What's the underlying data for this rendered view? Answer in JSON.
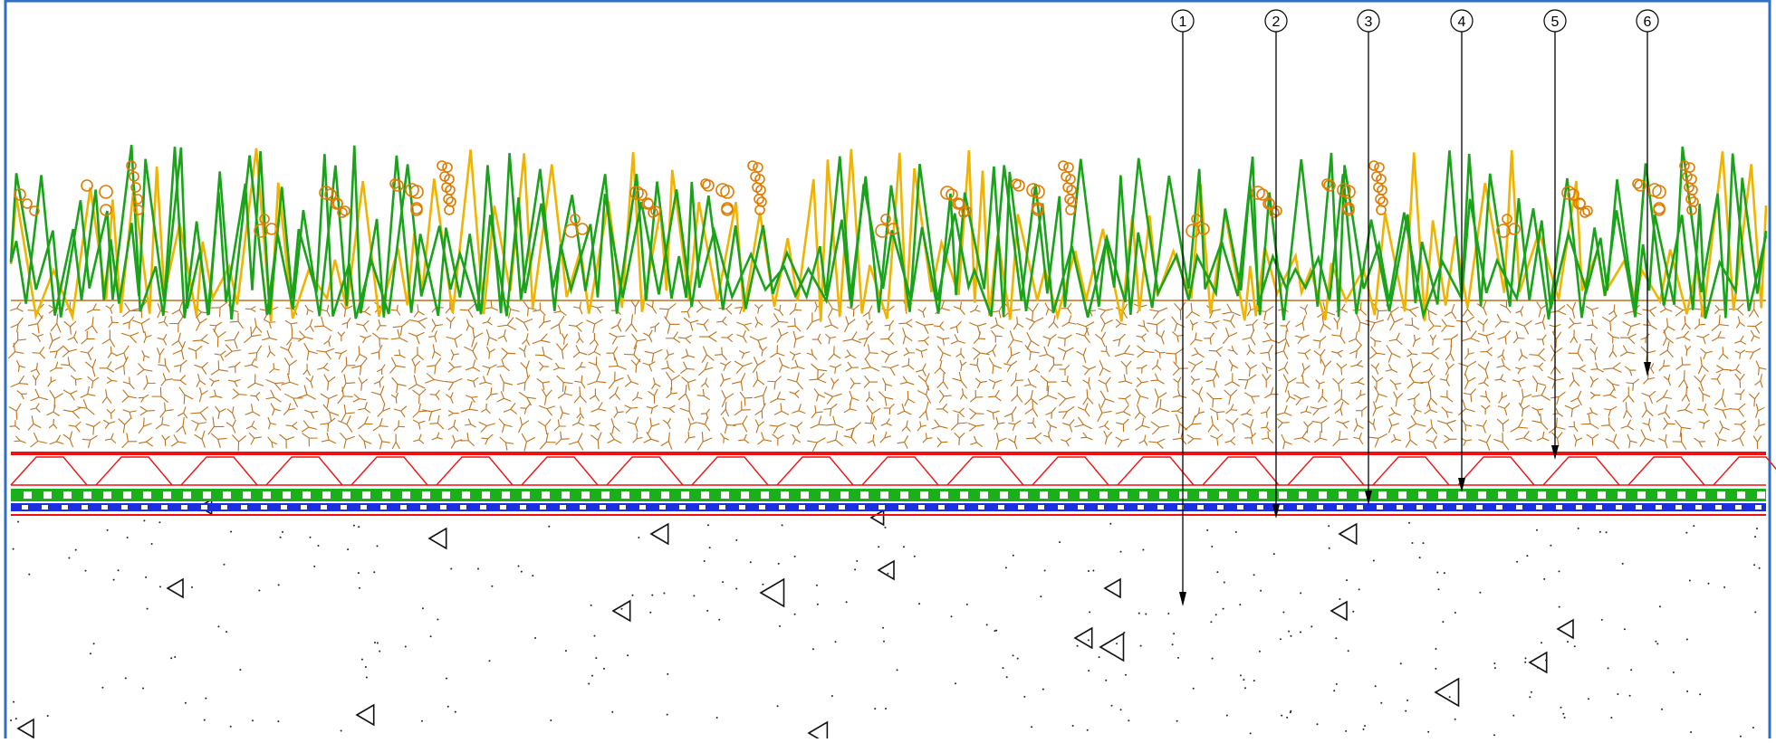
{
  "callouts": [
    {
      "number": "1",
      "layer": "subgrade"
    },
    {
      "number": "2",
      "layer": "bottom-membrane"
    },
    {
      "number": "3",
      "layer": "waterproofing-membrane"
    },
    {
      "number": "4",
      "layer": "root-barrier"
    },
    {
      "number": "5",
      "layer": "drainage-layer"
    },
    {
      "number": "6",
      "layer": "growing-medium"
    }
  ],
  "colors": {
    "frame": "#2f6fc4",
    "grass_green": "#1aa31a",
    "grass_yellow": "#f0b400",
    "seed_orange": "#e07a00",
    "soil": "#c07018",
    "drainage_red": "#ee1111",
    "root_barrier_green": "#19b019",
    "membrane_blue": "#1a2fe0",
    "leader": "#000000"
  },
  "icons": {
    "grass": "grass-blade-icon",
    "seed": "seed-circle-icon",
    "aggregate": "aggregate-triangle-icon"
  }
}
